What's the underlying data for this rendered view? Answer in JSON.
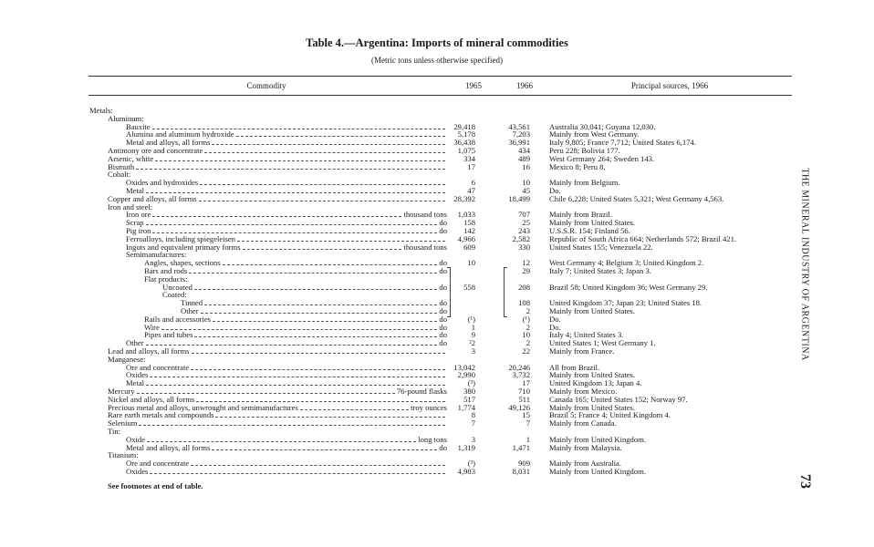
{
  "header": {
    "title": "Table 4.—Argentina: Imports of mineral commodities",
    "subtitle": "(Metric tons unless otherwise specified)",
    "side_text": "THE MINERAL INDUSTRY OF ARGENTINA",
    "page_number": "73"
  },
  "table": {
    "columns": [
      "Commodity",
      "1965",
      "1966",
      "Principal sources, 1966"
    ],
    "rows": [
      {
        "commodity": "Metals:"
      },
      {
        "commodity": "Aluminum:"
      },
      {
        "commodity": "Bauxite",
        "y1965": "29,418",
        "y1966": "43,561",
        "sources": "Australia 30,041; Guyana 12,030."
      },
      {
        "commodity": "Alumina and aluminum hydroxide",
        "y1965": "5,178",
        "y1966": "7,203",
        "sources": "Mainly from West Germany."
      },
      {
        "commodity": "Metal and alloys, all forms",
        "y1965": "36,438",
        "y1966": "36,991",
        "sources": "Italy 9,805; France 7,712; United States 6,174."
      },
      {
        "commodity": "Antimony ore and concentrate",
        "y1965": "1,075",
        "y1966": "434",
        "sources": "Peru 228; Bolivia 177."
      },
      {
        "commodity": "Arsenic, white",
        "y1965": "334",
        "y1966": "489",
        "sources": "West Germany 264; Sweden 143."
      },
      {
        "commodity": "Bismuth",
        "y1965": "17",
        "y1966": "16",
        "sources": "Mexico 8; Peru 8."
      },
      {
        "commodity": "Cobalt:"
      },
      {
        "commodity": "Oxides and hydroxides",
        "y1965": "6",
        "y1966": "10",
        "sources": "Mainly from Belgium."
      },
      {
        "commodity": "Metal",
        "y1965": "47",
        "y1966": "45",
        "sources": "Do."
      },
      {
        "commodity": "Copper and alloys, all forms",
        "y1965": "28,392",
        "y1966": "18,499",
        "sources": "Chile 6,228; United States 5,321; West Germany 4,563."
      },
      {
        "commodity": "Iron and steel:"
      },
      {
        "commodity": "Iron ore",
        "unit": "thousand tons",
        "y1965": "1,033",
        "y1966": "707",
        "sources": "Mainly from Brazil."
      },
      {
        "commodity": "Scrap",
        "unit": "do",
        "y1965": "158",
        "y1966": "25",
        "sources": "Mainly from United States."
      },
      {
        "commodity": "Pig iron",
        "unit": "do",
        "y1965": "142",
        "y1966": "243",
        "sources": "U.S.S.R. 154; Finland 56."
      },
      {
        "commodity": "Ferroalloys, including spiegeleisen",
        "y1965": "4,966",
        "y1966": "2,582",
        "sources": "Republic of South Africa 664; Netherlands 572; Brazil 421."
      },
      {
        "commodity": "Ingots and equivalent primary forms",
        "unit": "thousand tons",
        "y1965": "609",
        "y1966": "330",
        "sources": "United States 155; Venezuela 22."
      },
      {
        "commodity": "Semimanufactures:"
      },
      {
        "commodity": "Angles, shapes, sections",
        "unit": "do",
        "y1965": "10",
        "y1966": "12",
        "sources": "West Germany 4; Belgium 3; United Kingdom 2."
      },
      {
        "commodity": "Bars and rods",
        "unit": "do",
        "y1966": "29",
        "sources": "Italy 7; United States 3; Japan 3."
      },
      {
        "commodity": "Flat products:"
      },
      {
        "commodity": "Uncoated",
        "unit": "do",
        "y1965": "558",
        "y1966": "208",
        "sources": "Brazil 58; United Kingdom 36; West Germany 29."
      },
      {
        "commodity": "Coated:"
      },
      {
        "commodity": "Tinned",
        "unit": "do",
        "y1966": "108",
        "sources": "United Kingdom 37; Japan 23; United States 18."
      },
      {
        "commodity": "Other",
        "unit": "do",
        "y1966": "2",
        "sources": "Mainly from United States."
      },
      {
        "commodity": "Rails and accessories",
        "unit": "do",
        "y1965": "(¹)",
        "y1966": "(¹)",
        "sources": "Do."
      },
      {
        "commodity": "Wire",
        "unit": "do",
        "y1965": "1",
        "y1966": "2",
        "sources": "Do."
      },
      {
        "commodity": "Pipes and tubes",
        "unit": "do",
        "y1965": "9",
        "y1966": "10",
        "sources": "Italy 4; United States 3."
      },
      {
        "commodity": "Other",
        "unit": "do",
        "y1965": "²2",
        "y1966": "2",
        "sources": "United States 1; West Germany 1."
      },
      {
        "commodity": "Lead and alloys, all forms",
        "y1965": "3",
        "y1966": "22",
        "sources": "Mainly from France."
      },
      {
        "commodity": "Manganese:"
      },
      {
        "commodity": "Ore and concentrate",
        "y1965": "13,042",
        "y1966": "20,246",
        "sources": "All from Brazil."
      },
      {
        "commodity": "Oxides",
        "y1965": "2,990",
        "y1966": "3,732",
        "sources": "Mainly from United States."
      },
      {
        "commodity": "Metal",
        "y1965": "(³)",
        "y1966": "17",
        "sources": "United Kingdom 13; Japan 4."
      },
      {
        "commodity": "Mercury",
        "unit": "76-pound flasks",
        "y1965": "380",
        "y1966": "710",
        "sources": "Mainly from Mexico."
      },
      {
        "commodity": "Nickel and alloys, all forms",
        "y1965": "517",
        "y1966": "511",
        "sources": "Canada 165; United States 152; Norway 97."
      },
      {
        "commodity": "Precious metal and alloys, unwrought and semimanufactures",
        "unit": "troy ounces",
        "y1965": "1,774",
        "y1966": "49,126",
        "sources": "Mainly from United States."
      },
      {
        "commodity": "Rare earth metals and compounds",
        "y1965": "8",
        "y1966": "15",
        "sources": "Brazil 5; France 4; United Kingdom 4."
      },
      {
        "commodity": "Selenium",
        "y1965": "7",
        "y1966": "7",
        "sources": "Mainly from Canada."
      },
      {
        "commodity": "Tin:"
      },
      {
        "commodity": "Oxide",
        "unit": "long tons",
        "y1965": "3",
        "y1966": "1",
        "sources": "Mainly from United Kingdom."
      },
      {
        "commodity": "Metal and alloys, all forms",
        "unit": "do",
        "y1965": "1,319",
        "y1966": "1,471",
        "sources": "Mainly from Malaysia."
      },
      {
        "commodity": "Titanium:"
      },
      {
        "commodity": "Ore and concentrate",
        "y1965": "(³)",
        "y1966": "909",
        "sources": "Mainly from Australia."
      },
      {
        "commodity": "Oxides",
        "y1965": "4,983",
        "y1966": "8,031",
        "sources": "Mainly from United Kingdom."
      }
    ]
  },
  "footer": {
    "note": "See footnotes at end of table."
  }
}
